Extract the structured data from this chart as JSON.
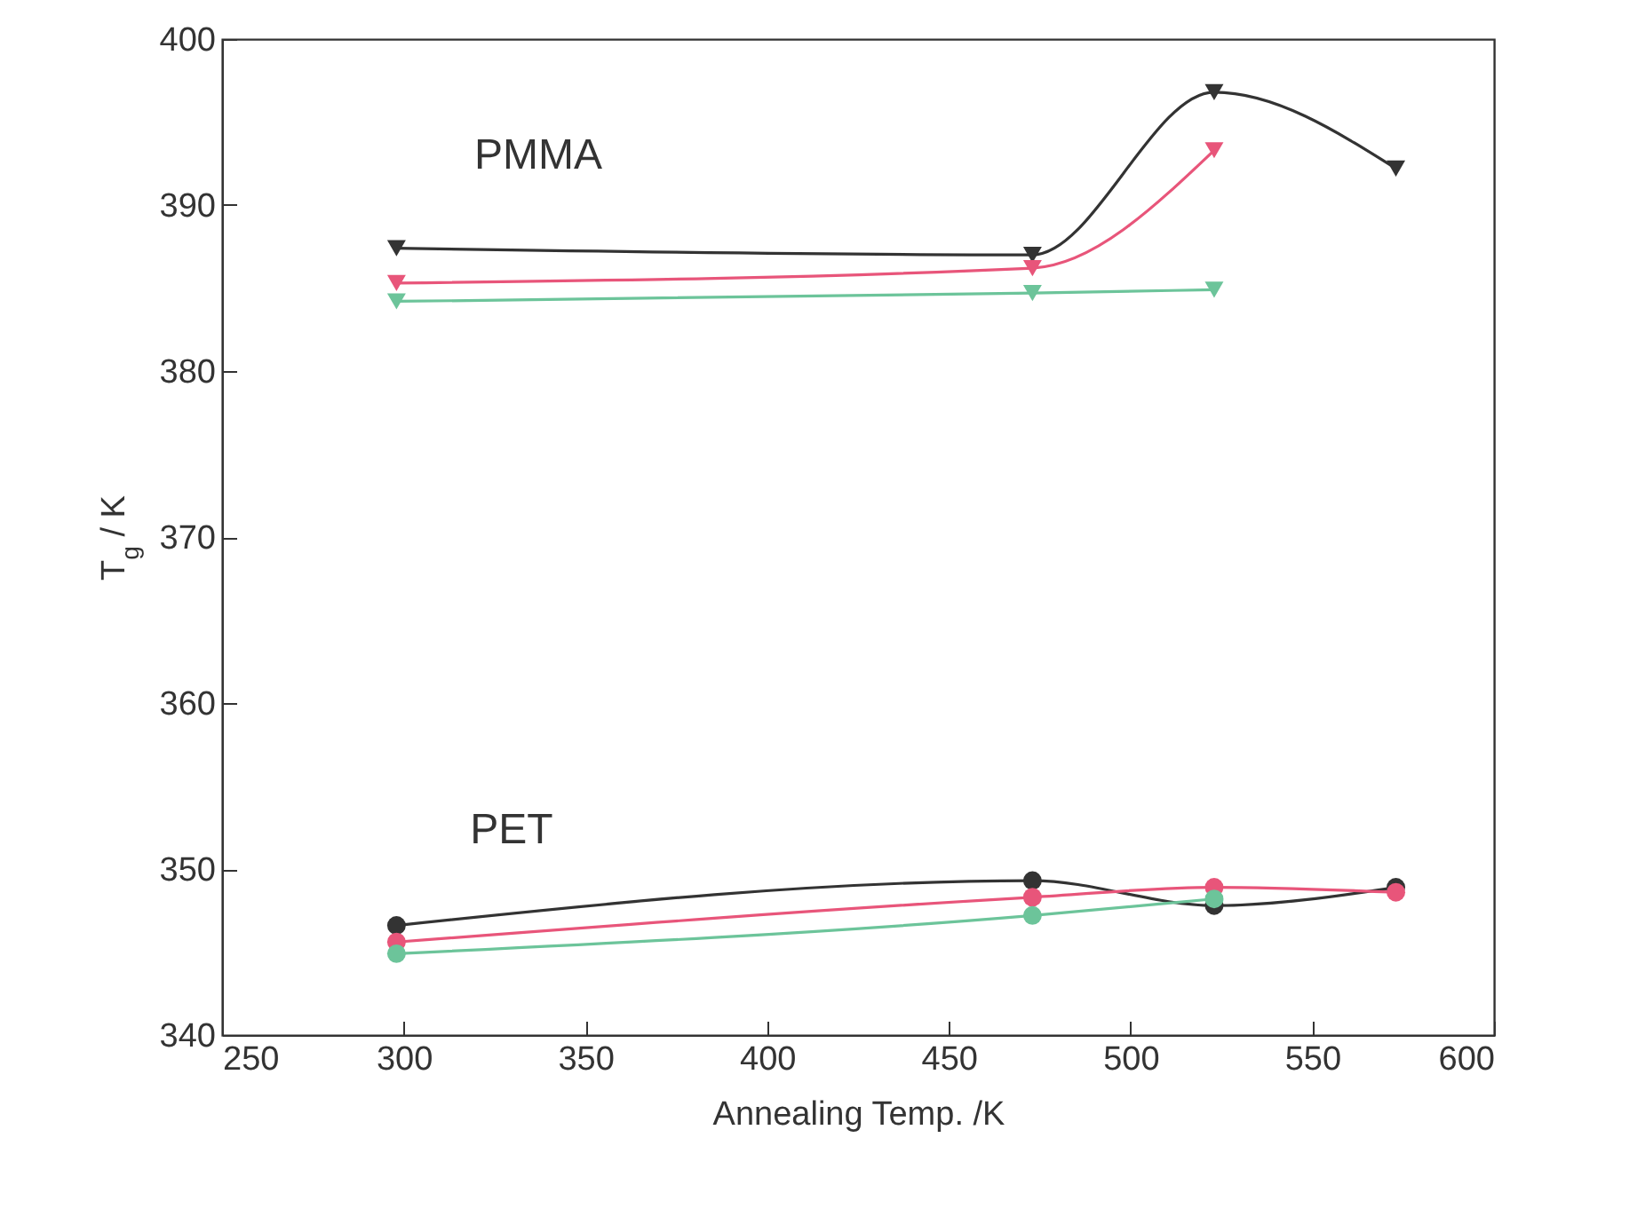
{
  "chart_data": {
    "type": "line",
    "xlabel": "Annealing Temp. /K",
    "ylabel": "T$_{g}$ / K",
    "xlim": [
      250,
      600
    ],
    "xticks": [
      250,
      300,
      350,
      400,
      450,
      500,
      550,
      600
    ],
    "ylim": [
      340,
      400
    ],
    "yticks": [
      340,
      350,
      360,
      370,
      380,
      390,
      400
    ],
    "grid": false,
    "annotations": [
      "PMMA",
      "PET"
    ],
    "series": [
      {
        "color": "#333333",
        "marker": "triangle",
        "x": [
          298,
          473,
          523,
          573
        ],
        "values": [
          387.4,
          387.0,
          396.8,
          392.2
        ]
      },
      {
        "color": "#e8557a",
        "marker": "triangle",
        "x": [
          298,
          473,
          523
        ],
        "values": [
          385.3,
          386.2,
          393.3
        ]
      },
      {
        "color": "#6cc49a",
        "marker": "triangle",
        "x": [
          298,
          473,
          523
        ],
        "values": [
          384.2,
          384.7,
          384.9
        ]
      },
      {
        "color": "#333333",
        "marker": "circle",
        "x": [
          298,
          473,
          523,
          573
        ],
        "values": [
          346.6,
          349.3,
          347.8,
          348.9
        ]
      },
      {
        "color": "#e8557a",
        "marker": "circle",
        "x": [
          298,
          473,
          523,
          573
        ],
        "values": [
          345.6,
          348.3,
          348.9,
          348.6
        ]
      },
      {
        "color": "#6cc49a",
        "marker": "circle",
        "x": [
          298,
          473,
          523
        ],
        "values": [
          344.9,
          347.2,
          348.2
        ]
      }
    ]
  }
}
